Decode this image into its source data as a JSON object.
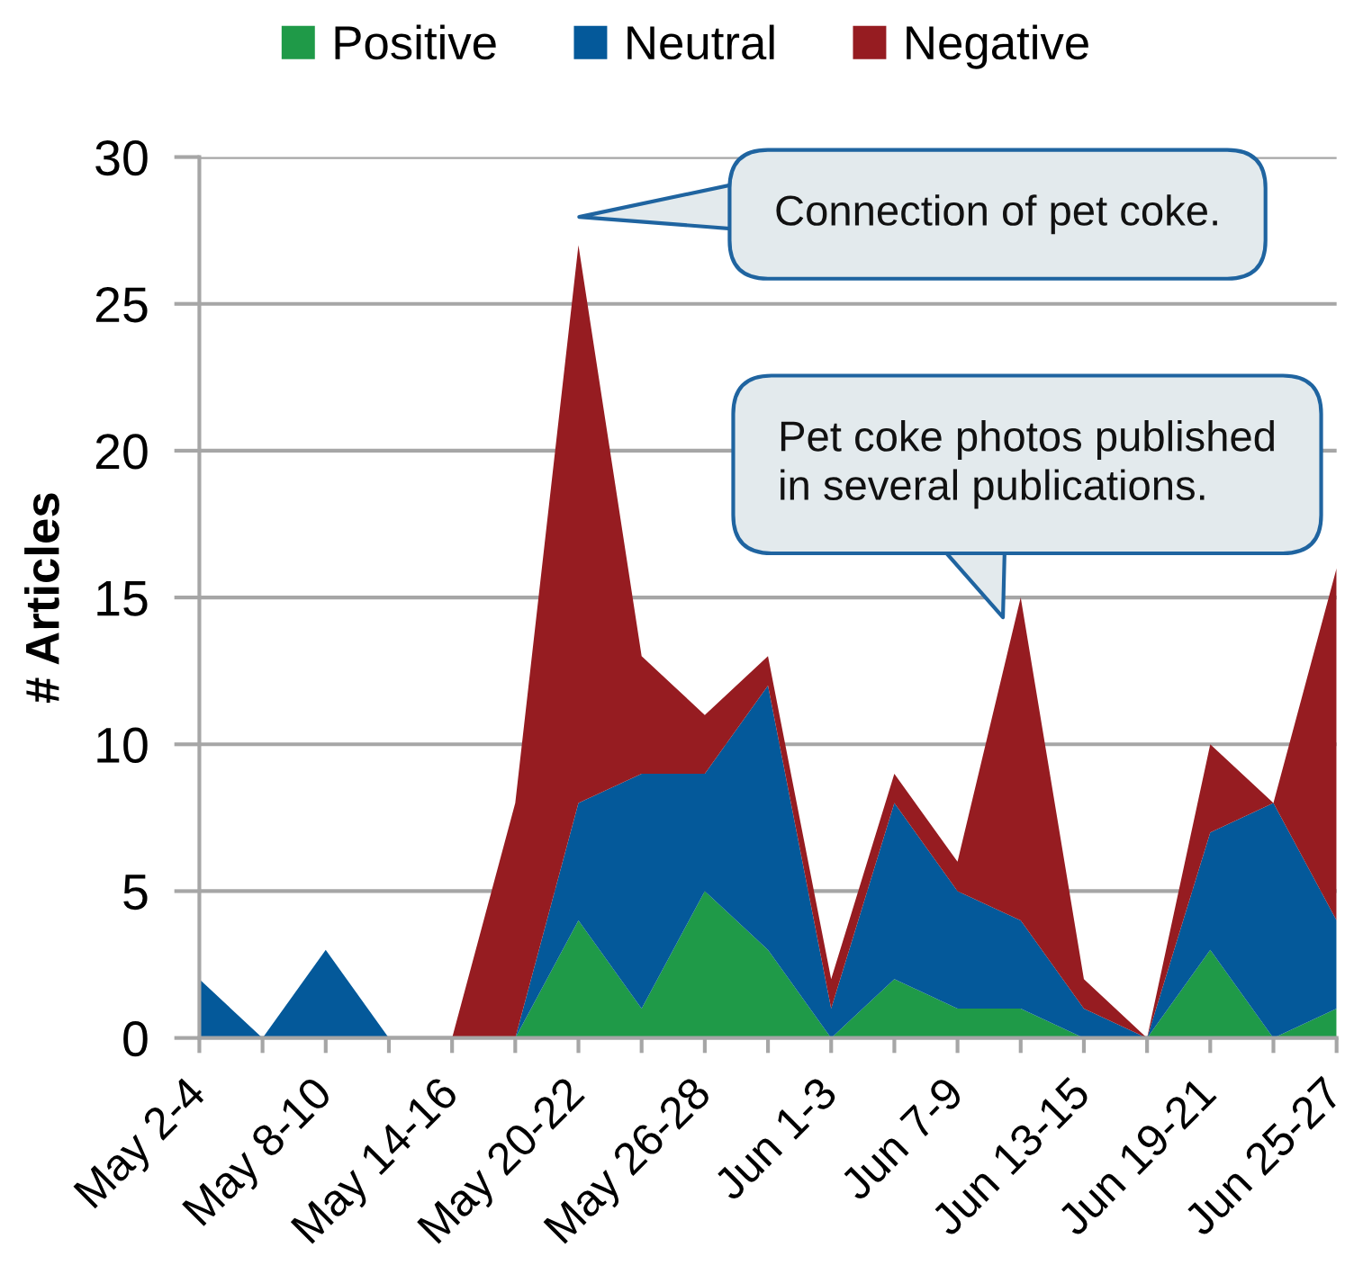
{
  "chart_data": {
    "type": "area",
    "stacked": true,
    "categories": [
      "May 2-4",
      null,
      "May 8-10",
      null,
      "May 14-16",
      null,
      "May 20-22",
      null,
      "May 26-28",
      null,
      "Jun 1-3",
      null,
      "Jun 7-9",
      null,
      "Jun 13-15",
      null,
      "Jun 19-21",
      null,
      "Jun 25-27"
    ],
    "series": [
      {
        "name": "Positive",
        "color": "#1f9a48",
        "values": [
          0,
          0,
          0,
          0,
          0,
          0,
          4,
          1,
          5,
          3,
          0,
          2,
          1,
          1,
          0,
          0,
          3,
          0,
          1
        ]
      },
      {
        "name": "Neutral",
        "color": "#04599a",
        "values": [
          2,
          0,
          3,
          0,
          0,
          0,
          4,
          8,
          4,
          9,
          1,
          6,
          4,
          3,
          1,
          0,
          4,
          8,
          3
        ]
      },
      {
        "name": "Negative",
        "color": "#961c21",
        "values": [
          0,
          0,
          0,
          0,
          0,
          8,
          19,
          4,
          2,
          1,
          1,
          1,
          1,
          11,
          1,
          0,
          3,
          0,
          12
        ]
      }
    ],
    "ylabel": "# Articles",
    "ylim": [
      0,
      30
    ],
    "yticks": [
      0,
      5,
      10,
      15,
      20,
      25,
      30
    ],
    "grid": "y",
    "legend": "top",
    "annotations": [
      "Connection of pet coke.",
      "Pet coke photos published\nin several publications."
    ]
  }
}
